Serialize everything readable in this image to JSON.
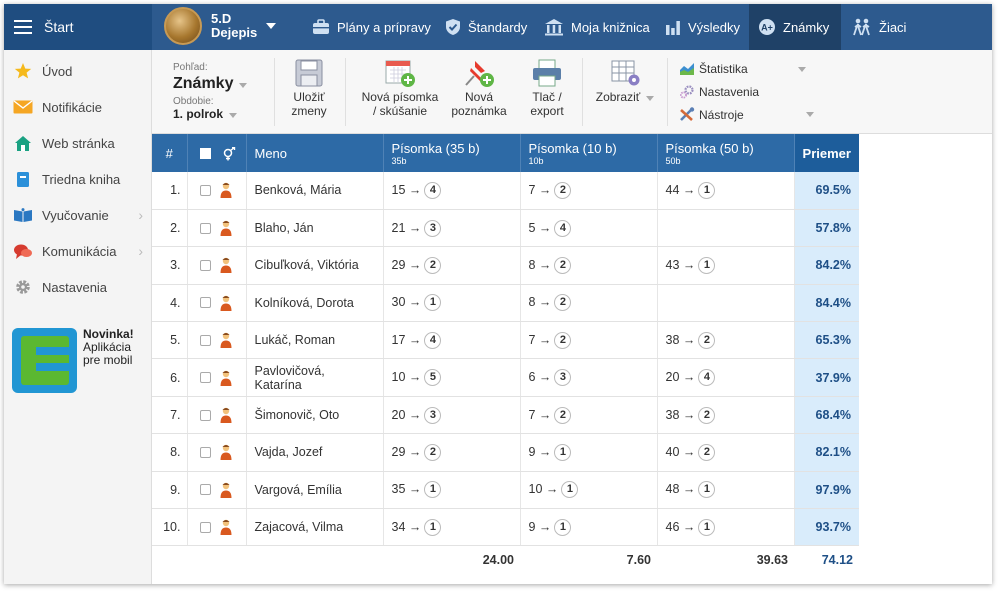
{
  "nav": {
    "start": "Štart",
    "course_class": "5.D",
    "course_subject": "Dejepis",
    "items": [
      {
        "label": "Plány a prípravy"
      },
      {
        "label": "Štandardy"
      },
      {
        "label": "Moja knižnica"
      },
      {
        "label": "Výsledky"
      },
      {
        "label": "Známky"
      },
      {
        "label": "Žiaci"
      }
    ]
  },
  "sidebar": {
    "items": [
      {
        "label": "Úvod"
      },
      {
        "label": "Notifikácie"
      },
      {
        "label": "Web stránka"
      },
      {
        "label": "Triedna kniha"
      },
      {
        "label": "Vyučovanie"
      },
      {
        "label": "Komunikácia"
      },
      {
        "label": "Nastavenia"
      }
    ],
    "promo_title": "Novinka!",
    "promo_line1": "Aplikácia",
    "promo_line2": "pre mobil"
  },
  "toolbar": {
    "view_label": "Pohľad:",
    "view_value": "Známky",
    "period_label": "Obdobie:",
    "period_value": "1. polrok",
    "save_l1": "Uložiť",
    "save_l2": "zmeny",
    "new_test_l1": "Nová písomka",
    "new_test_l2": "/ skúšanie",
    "new_note_l1": "Nová",
    "new_note_l2": "poznámka",
    "print_l1": "Tlač /",
    "print_l2": "export",
    "show": "Zobraziť",
    "stats": "Štatistika",
    "settings": "Nastavenia",
    "tools": "Nástroje"
  },
  "table": {
    "h_num": "#",
    "h_name": "Meno",
    "h_test1": "Písomka (35 b)",
    "h_test1_sub": "35b",
    "h_test2": "Písomka (10 b)",
    "h_test2_sub": "10b",
    "h_test3": "Písomka (50 b)",
    "h_test3_sub": "50b",
    "h_avg": "Priemer",
    "rows": [
      {
        "n": "1.",
        "name": "Benková, Mária",
        "t1p": "15 →",
        "t1g": "4",
        "t2p": "7 →",
        "t2g": "2",
        "t3p": "44 →",
        "t3g": "1",
        "avg": "69.5%"
      },
      {
        "n": "2.",
        "name": "Blaho, Ján",
        "t1p": "21 →",
        "t1g": "3",
        "t2p": "5 →",
        "t2g": "4",
        "t3p": "",
        "t3g": "",
        "avg": "57.8%"
      },
      {
        "n": "3.",
        "name": "Cibuľková, Viktória",
        "t1p": "29 →",
        "t1g": "2",
        "t2p": "8 →",
        "t2g": "2",
        "t3p": "43 →",
        "t3g": "1",
        "avg": "84.2%"
      },
      {
        "n": "4.",
        "name": "Kolníková, Dorota",
        "t1p": "30 →",
        "t1g": "1",
        "t2p": "8 →",
        "t2g": "2",
        "t3p": "",
        "t3g": "",
        "avg": "84.4%"
      },
      {
        "n": "5.",
        "name": "Lukáč, Roman",
        "t1p": "17 →",
        "t1g": "4",
        "t2p": "7 →",
        "t2g": "2",
        "t3p": "38 →",
        "t3g": "2",
        "avg": "65.3%"
      },
      {
        "n": "6.",
        "name": "Pavlovičová, Katarína",
        "t1p": "10 →",
        "t1g": "5",
        "t2p": "6 →",
        "t2g": "3",
        "t3p": "20 →",
        "t3g": "4",
        "avg": "37.9%"
      },
      {
        "n": "7.",
        "name": "Šimonovič, Oto",
        "t1p": "20 →",
        "t1g": "3",
        "t2p": "7 →",
        "t2g": "2",
        "t3p": "38 →",
        "t3g": "2",
        "avg": "68.4%"
      },
      {
        "n": "8.",
        "name": "Vajda, Jozef",
        "t1p": "29 →",
        "t1g": "2",
        "t2p": "9 →",
        "t2g": "1",
        "t3p": "40 →",
        "t3g": "2",
        "avg": "82.1%"
      },
      {
        "n": "9.",
        "name": "Vargová, Emília",
        "t1p": "35 →",
        "t1g": "1",
        "t2p": "10 →",
        "t2g": "1",
        "t3p": "48 →",
        "t3g": "1",
        "avg": "97.9%"
      },
      {
        "n": "10.",
        "name": "Zajacová, Vilma",
        "t1p": "34 →",
        "t1g": "1",
        "t2p": "9 →",
        "t2g": "1",
        "t3p": "46 →",
        "t3g": "1",
        "avg": "93.7%"
      }
    ],
    "footer": {
      "t1": "24.00",
      "t2": "7.60",
      "t3": "39.63",
      "avg": "74.12"
    }
  },
  "colors": {
    "nav_bg": "#2d5a8e",
    "nav_active": "#1f4167",
    "header_bg": "#2d6aa6",
    "avg_bg": "#d9ecfb"
  }
}
